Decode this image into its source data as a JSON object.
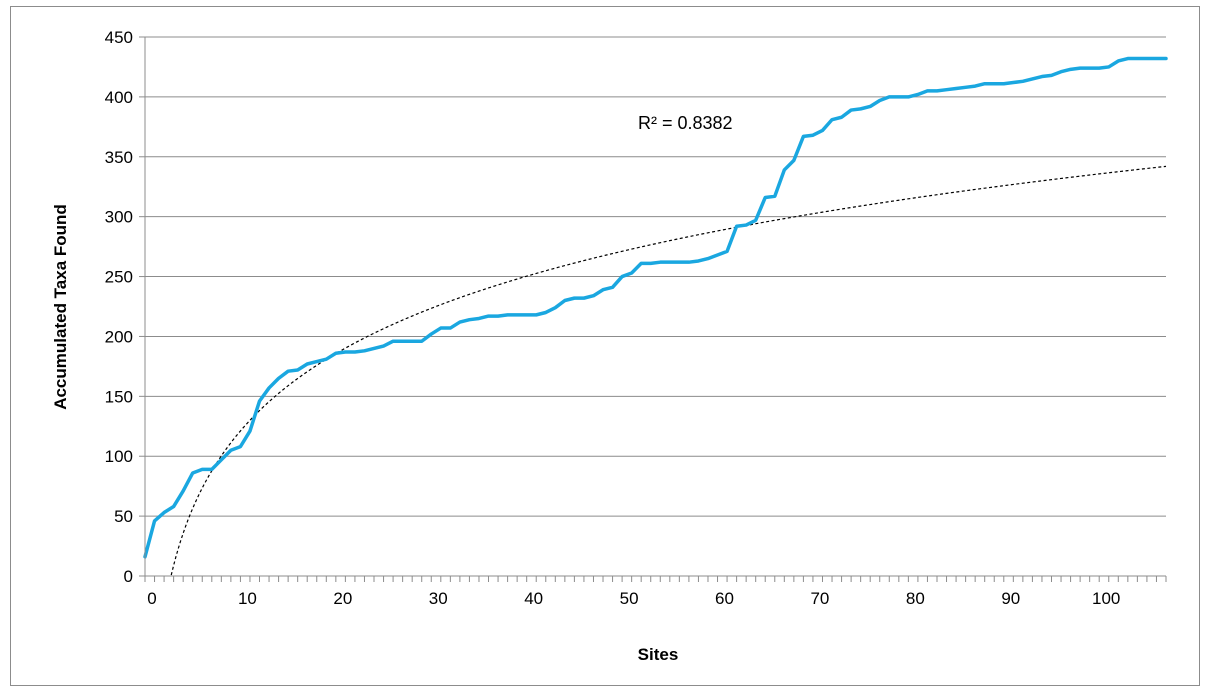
{
  "chart_data": {
    "type": "line",
    "title": "",
    "xlabel": "Sites",
    "ylabel": "Accumulated Taxa Found",
    "xlim": [
      0,
      107
    ],
    "ylim": [
      0,
      450
    ],
    "x_ticks": [
      0,
      10,
      20,
      30,
      40,
      50,
      60,
      70,
      80,
      90,
      100
    ],
    "y_ticks": [
      0,
      50,
      100,
      150,
      200,
      250,
      300,
      350,
      400,
      450
    ],
    "grid": "horizontal",
    "legend": "none",
    "annotation": "R² = 0.8382",
    "series": [
      {
        "color": "#1aa7e0",
        "x": [
          0,
          1,
          2,
          3,
          4,
          5,
          6,
          7,
          8,
          9,
          10,
          11,
          12,
          13,
          14,
          15,
          16,
          17,
          18,
          19,
          20,
          21,
          22,
          23,
          24,
          25,
          26,
          27,
          28,
          29,
          30,
          31,
          32,
          33,
          34,
          35,
          36,
          37,
          38,
          39,
          40,
          41,
          42,
          43,
          44,
          45,
          46,
          47,
          48,
          49,
          50,
          51,
          52,
          53,
          54,
          55,
          56,
          57,
          58,
          59,
          60,
          61,
          62,
          63,
          64,
          65,
          66,
          67,
          68,
          69,
          70,
          71,
          72,
          73,
          74,
          75,
          76,
          77,
          78,
          79,
          80,
          81,
          82,
          83,
          84,
          85,
          86,
          87,
          88,
          89,
          90,
          91,
          92,
          93,
          94,
          95,
          96,
          97,
          98,
          99,
          100,
          101,
          102,
          103,
          104,
          105,
          106,
          107
        ],
        "y": [
          16,
          46,
          53,
          58,
          71,
          86,
          89,
          89,
          97,
          105,
          108,
          121,
          146,
          157,
          165,
          171,
          172,
          177,
          179,
          181,
          186,
          187,
          187,
          188,
          190,
          192,
          196,
          196,
          196,
          196,
          202,
          207,
          207,
          212,
          214,
          215,
          217,
          217,
          218,
          218,
          218,
          218,
          220,
          224,
          230,
          232,
          232,
          234,
          239,
          241,
          250,
          253,
          261,
          261,
          262,
          262,
          262,
          262,
          263,
          265,
          268,
          271,
          292,
          293,
          297,
          316,
          317,
          339,
          347,
          367,
          368,
          372,
          381,
          383,
          389,
          390,
          392,
          397,
          400,
          400,
          400,
          402,
          405,
          405,
          406,
          407,
          408,
          409,
          411,
          411,
          411,
          412,
          413,
          415,
          417,
          418,
          421,
          423,
          424,
          424,
          424,
          425,
          430,
          432,
          432,
          432,
          432,
          432
        ]
      }
    ],
    "trendline": {
      "kind": "logarithmic",
      "r_squared": 0.8382,
      "style": "dashed",
      "color": "#000000",
      "a": 93.2,
      "b": -93.5
    }
  }
}
